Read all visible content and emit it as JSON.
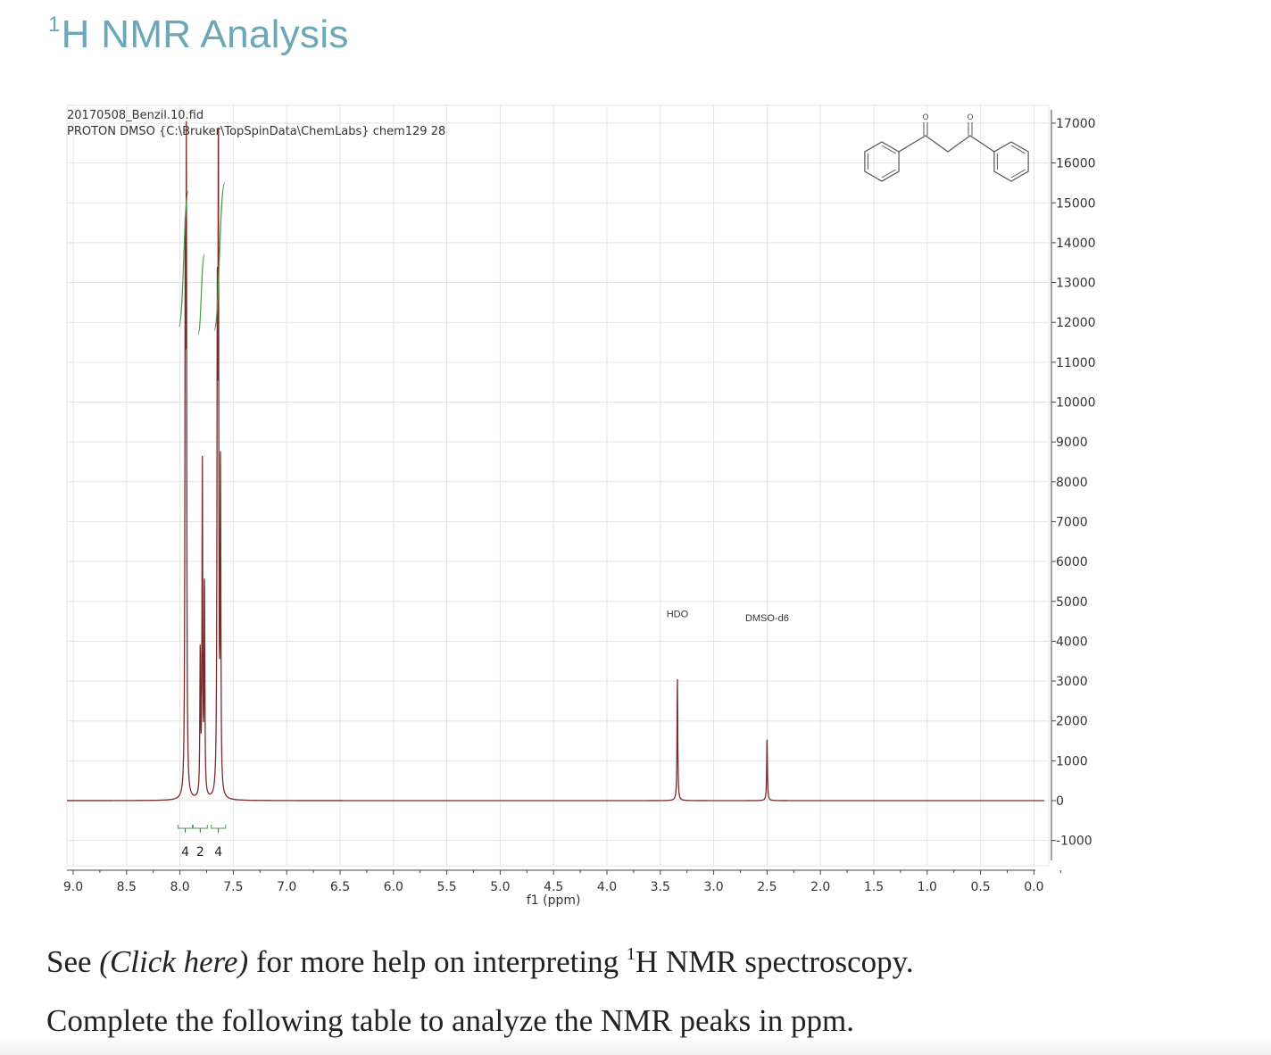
{
  "heading": {
    "sup": "1",
    "text": "H NMR Analysis"
  },
  "chart_data": {
    "type": "line",
    "header_line1": "20170508_Benzil.10.fid",
    "header_line2": "PROTON DMSO {C:\\Bruker\\TopSpinData\\ChemLabs} chem129 28",
    "xlabel": "f1 (ppm)",
    "x_axis_reversed": true,
    "xlim": [
      9.0,
      0.0
    ],
    "ylim": [
      -1500,
      17500
    ],
    "grid": true,
    "x_ticks": [
      "9.0",
      "8.5",
      "8.0",
      "7.5",
      "7.0",
      "6.5",
      "6.0",
      "5.5",
      "5.0",
      "4.5",
      "4.0",
      "3.5",
      "3.0",
      "2.5",
      "2.0",
      "1.5",
      "1.0",
      "0.5",
      "0.0"
    ],
    "y_ticks": [
      "17000",
      "16000",
      "15000",
      "14000",
      "13000",
      "12000",
      "11000",
      "10000",
      "9000",
      "8000",
      "7000",
      "6000",
      "5000",
      "4000",
      "3000",
      "2000",
      "1000",
      "0",
      "-1000"
    ],
    "y_axis_position": "right",
    "line_color": "#7b2a2a",
    "integral_color": "#4a9a4a",
    "peaks": [
      {
        "ppm": 7.95,
        "height": 13100
      },
      {
        "ppm": 7.94,
        "height": 15200
      },
      {
        "ppm": 7.81,
        "height": 3600
      },
      {
        "ppm": 7.79,
        "height": 8300
      },
      {
        "ppm": 7.77,
        "height": 5400
      },
      {
        "ppm": 7.65,
        "height": 11000
      },
      {
        "ppm": 7.64,
        "height": 15800
      },
      {
        "ppm": 7.62,
        "height": 8000
      },
      {
        "ppm": 3.34,
        "height": 3100
      },
      {
        "ppm": 2.5,
        "height": 1600
      }
    ],
    "integrations": [
      {
        "ppm": 7.95,
        "value": "4"
      },
      {
        "ppm": 7.81,
        "value": "2"
      },
      {
        "ppm": 7.64,
        "value": "4"
      }
    ],
    "annotations": [
      {
        "label": "HDO",
        "ppm": 3.34,
        "y": 4600
      },
      {
        "label": "DMSO-d6",
        "ppm": 2.5,
        "y": 4500
      }
    ],
    "structure_label_atom": "O"
  },
  "paragraph1": {
    "pre": "See ",
    "link": "(Click here)",
    "mid": " for more help on interpreting ",
    "sup": "1",
    "post": "H NMR spectroscopy."
  },
  "paragraph2": "Complete the following table to analyze the NMR peaks in ppm."
}
